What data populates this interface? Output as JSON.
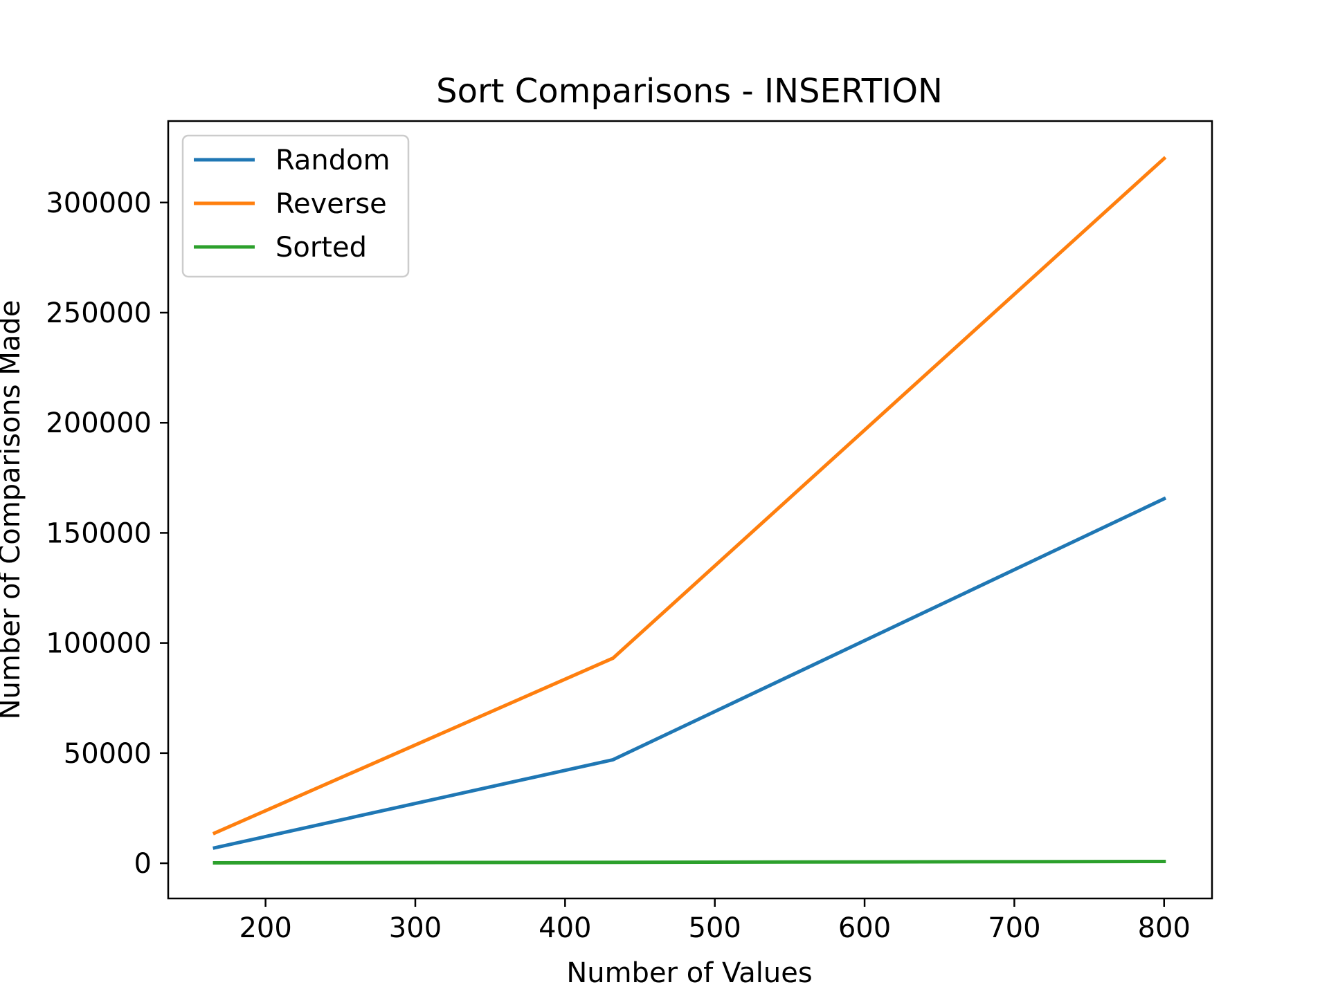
{
  "chart_data": {
    "type": "line",
    "title": "Sort Comparisons - INSERTION",
    "xlabel": "Number of Values",
    "ylabel": "Number of Comparisons Made",
    "xlim": [
      135,
      832
    ],
    "ylim": [
      -16000,
      337000
    ],
    "xticks": [
      200,
      300,
      400,
      500,
      600,
      700,
      800
    ],
    "yticks": [
      0,
      50000,
      100000,
      150000,
      200000,
      250000,
      300000
    ],
    "grid": false,
    "legend_position": "top-left",
    "series": [
      {
        "name": "Random",
        "color": "#1f77b4",
        "x": [
          166,
          432,
          800
        ],
        "y": [
          7000,
          47000,
          165500
        ]
      },
      {
        "name": "Reverse",
        "color": "#ff7f0e",
        "x": [
          166,
          432,
          800
        ],
        "y": [
          13700,
          93100,
          320000
        ]
      },
      {
        "name": "Sorted",
        "color": "#2ca02c",
        "x": [
          166,
          432,
          800
        ],
        "y": [
          165,
          431,
          799
        ]
      }
    ]
  }
}
